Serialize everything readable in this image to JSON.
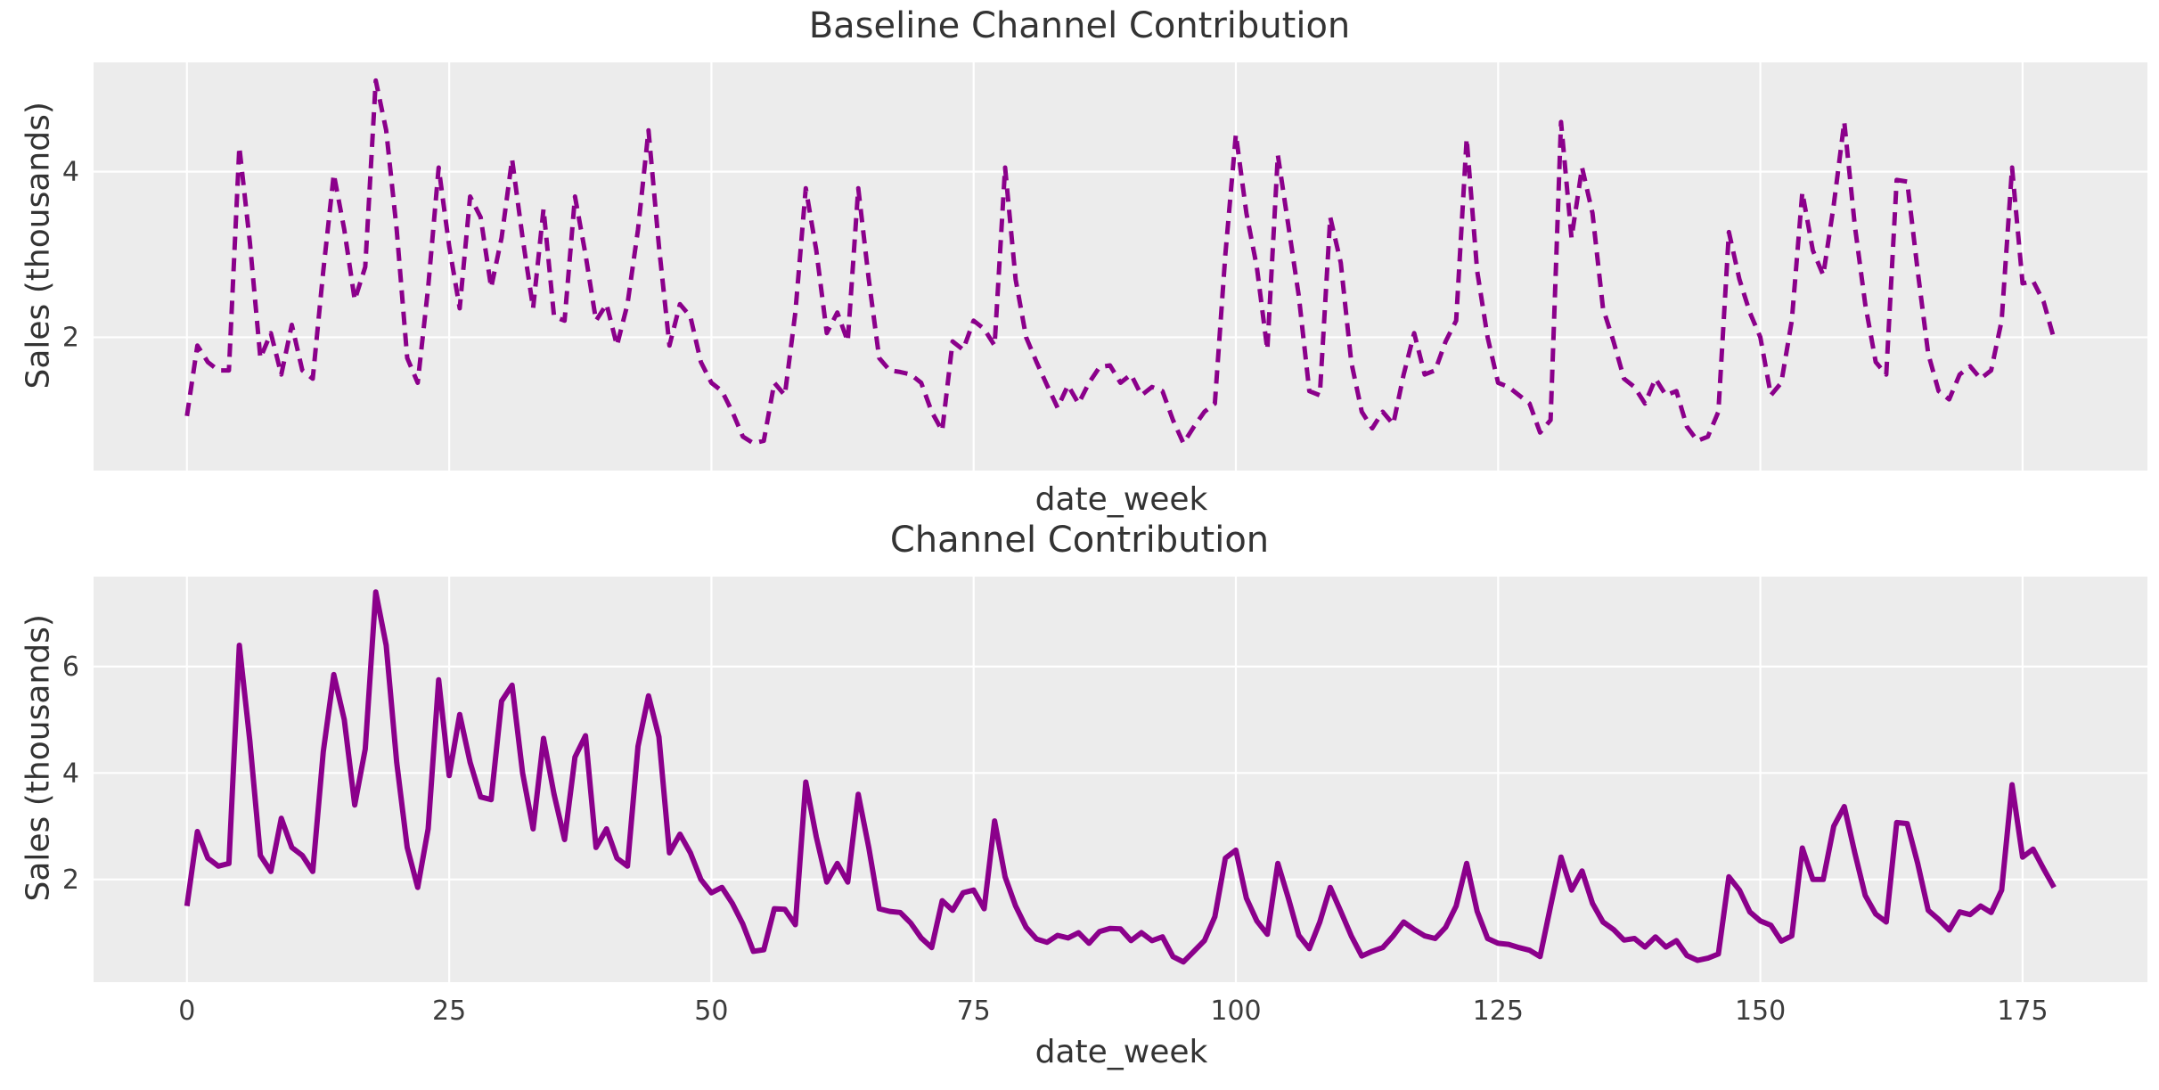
{
  "chart_data": [
    {
      "type": "line",
      "title": "Baseline Channel Contribution",
      "xlabel": "date_week",
      "ylabel": "Sales (thousands)",
      "line_style": "dashed",
      "line_color": "#8B008B",
      "plot_background": "#ECECEC",
      "grid_color": "#FFFFFF",
      "grid": true,
      "legend": false,
      "x_ticks": [
        0,
        25,
        50,
        75,
        100,
        125,
        150,
        175
      ],
      "show_x_tick_labels": false,
      "y_ticks": [
        2,
        4
      ],
      "xlim": [
        -8.9,
        186.9
      ],
      "ylim": [
        0.39,
        5.32
      ],
      "x_start": 0,
      "x_step": 1,
      "values": [
        1.05,
        1.9,
        1.7,
        1.6,
        1.6,
        4.3,
        3.15,
        1.75,
        2.05,
        1.55,
        2.15,
        1.6,
        1.5,
        2.8,
        3.97,
        3.3,
        2.45,
        2.85,
        5.1,
        4.5,
        3.3,
        1.75,
        1.45,
        2.6,
        4.05,
        3.1,
        2.35,
        3.7,
        3.45,
        2.6,
        3.2,
        4.15,
        3.2,
        2.35,
        3.55,
        2.25,
        2.2,
        3.7,
        3.0,
        2.2,
        2.4,
        1.9,
        2.4,
        3.3,
        4.5,
        3.1,
        1.9,
        2.4,
        2.25,
        1.7,
        1.45,
        1.35,
        1.1,
        0.8,
        0.72,
        0.75,
        1.45,
        1.3,
        2.3,
        3.8,
        3.05,
        2.05,
        2.3,
        1.95,
        3.8,
        2.7,
        1.75,
        1.6,
        1.58,
        1.55,
        1.45,
        1.1,
        0.87,
        1.95,
        1.85,
        2.2,
        2.1,
        1.9,
        4.05,
        2.7,
        2.0,
        1.7,
        1.42,
        1.15,
        1.42,
        1.2,
        1.45,
        1.64,
        1.66,
        1.45,
        1.55,
        1.3,
        1.4,
        1.35,
        1.0,
        0.72,
        0.92,
        1.1,
        1.2,
        3.0,
        4.45,
        3.5,
        2.85,
        1.85,
        4.2,
        3.35,
        2.5,
        1.35,
        1.3,
        3.45,
        2.9,
        1.7,
        1.1,
        0.9,
        1.1,
        0.95,
        1.55,
        2.05,
        1.55,
        1.6,
        1.95,
        2.2,
        4.4,
        2.8,
        2.0,
        1.45,
        1.4,
        1.3,
        1.2,
        0.85,
        1.0,
        4.6,
        3.2,
        4.05,
        3.5,
        2.35,
        1.95,
        1.5,
        1.4,
        1.2,
        1.5,
        1.3,
        1.35,
        0.92,
        0.75,
        0.8,
        1.1,
        3.27,
        2.7,
        2.3,
        2.0,
        1.3,
        1.45,
        2.2,
        3.75,
        3.05,
        2.75,
        3.6,
        4.6,
        3.35,
        2.4,
        1.7,
        1.55,
        3.9,
        3.88,
        2.8,
        1.8,
        1.35,
        1.25,
        1.55,
        1.65,
        1.5,
        1.6,
        2.2,
        4.05,
        2.65,
        2.68,
        2.43,
        1.98
      ]
    },
    {
      "type": "line",
      "title": "Channel Contribution",
      "xlabel": "date_week",
      "ylabel": "Sales (thousands)",
      "line_style": "solid",
      "line_color": "#8B008B",
      "plot_background": "#ECECEC",
      "grid_color": "#FFFFFF",
      "grid": true,
      "legend": false,
      "x_ticks": [
        0,
        25,
        50,
        75,
        100,
        125,
        150,
        175
      ],
      "show_x_tick_labels": true,
      "y_ticks": [
        2,
        4,
        6
      ],
      "xlim": [
        -8.9,
        186.9
      ],
      "ylim": [
        0.07,
        7.69
      ],
      "x_start": 0,
      "x_step": 1,
      "values": [
        1.5,
        2.9,
        2.4,
        2.25,
        2.3,
        6.4,
        4.6,
        2.45,
        2.15,
        3.15,
        2.6,
        2.45,
        2.15,
        4.4,
        5.85,
        5.0,
        3.4,
        4.45,
        7.4,
        6.4,
        4.2,
        2.6,
        1.85,
        2.95,
        5.75,
        3.95,
        5.1,
        4.2,
        3.55,
        3.5,
        5.35,
        5.65,
        4.0,
        2.95,
        4.65,
        3.6,
        2.75,
        4.3,
        4.7,
        2.6,
        2.95,
        2.4,
        2.25,
        4.5,
        5.45,
        4.68,
        2.5,
        2.85,
        2.5,
        2.0,
        1.75,
        1.85,
        1.55,
        1.16,
        0.65,
        0.68,
        1.45,
        1.44,
        1.15,
        3.83,
        2.8,
        1.95,
        2.3,
        1.95,
        3.6,
        2.6,
        1.45,
        1.4,
        1.38,
        1.18,
        0.9,
        0.72,
        1.6,
        1.42,
        1.75,
        1.8,
        1.45,
        3.1,
        2.05,
        1.5,
        1.1,
        0.88,
        0.82,
        0.95,
        0.9,
        1.0,
        0.8,
        1.02,
        1.08,
        1.07,
        0.85,
        1.0,
        0.85,
        0.92,
        0.55,
        0.45,
        0.65,
        0.85,
        1.3,
        2.4,
        2.55,
        1.65,
        1.22,
        0.97,
        2.3,
        1.65,
        0.95,
        0.7,
        1.2,
        1.85,
        1.4,
        0.94,
        0.56,
        0.65,
        0.72,
        0.94,
        1.2,
        1.06,
        0.94,
        0.89,
        1.1,
        1.5,
        2.3,
        1.4,
        0.89,
        0.8,
        0.78,
        0.72,
        0.67,
        0.55,
        1.5,
        2.42,
        1.8,
        2.16,
        1.55,
        1.2,
        1.06,
        0.86,
        0.89,
        0.73,
        0.92,
        0.73,
        0.85,
        0.57,
        0.48,
        0.52,
        0.6,
        2.05,
        1.8,
        1.39,
        1.22,
        1.14,
        0.84,
        0.94,
        2.59,
        2.0,
        2.0,
        3.0,
        3.37,
        2.5,
        1.7,
        1.35,
        1.2,
        3.07,
        3.05,
        2.3,
        1.42,
        1.25,
        1.05,
        1.39,
        1.34,
        1.5,
        1.38,
        1.8,
        3.78,
        2.42,
        2.57,
        2.2,
        1.85
      ]
    }
  ]
}
